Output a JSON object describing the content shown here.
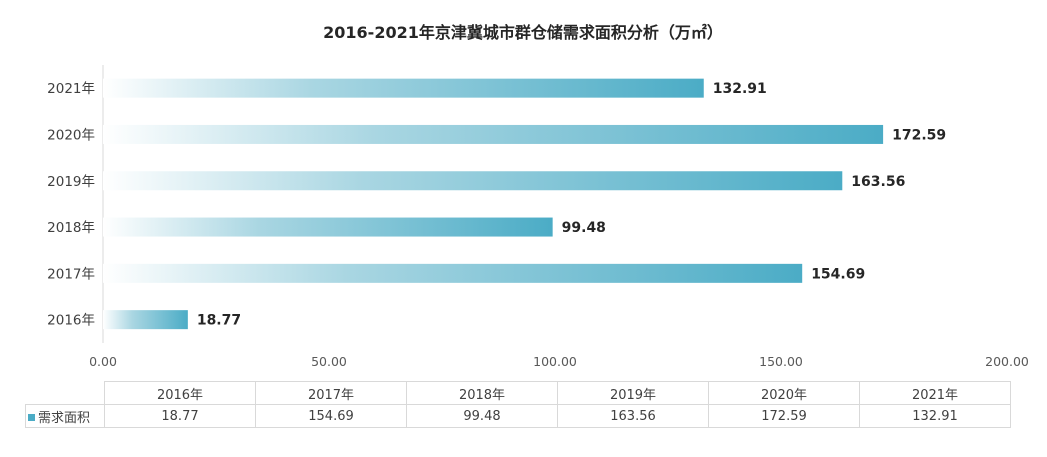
{
  "chart_data": {
    "type": "bar",
    "orientation": "horizontal",
    "title": "2016-2021年京津冀城市群仓储需求面积分析（万㎡）",
    "categories": [
      "2016年",
      "2017年",
      "2018年",
      "2019年",
      "2020年",
      "2021年"
    ],
    "series": [
      {
        "name": "需求面积",
        "values": [
          18.77,
          154.69,
          99.48,
          163.56,
          172.59,
          132.91
        ]
      }
    ],
    "value_labels": [
      "18.77",
      "154.69",
      "99.48",
      "163.56",
      "172.59",
      "132.91"
    ],
    "xticks": [
      "0.00",
      "50.00",
      "100.00",
      "150.00",
      "200.00"
    ],
    "xlim": [
      0,
      200
    ],
    "grid": false,
    "data_table": true,
    "bar_color": "#4bacc6"
  }
}
